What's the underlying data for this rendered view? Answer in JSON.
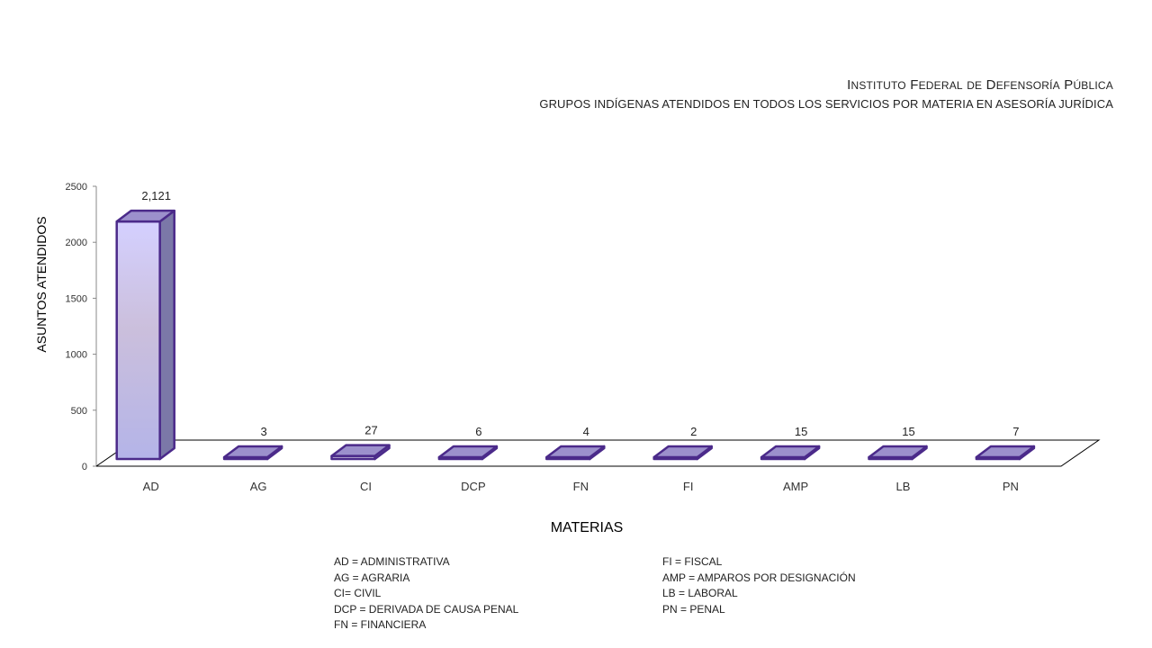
{
  "header": {
    "title": "Instituto Federal de Defensoría Pública",
    "subtitle": "GRUPOS INDÍGENAS ATENDIDOS EN TODOS LOS SERVICIOS POR MATERIA EN ASESORÍA JURÍDICA"
  },
  "legend": {
    "left": [
      "AD = ADMINISTRATIVA",
      "AG = AGRARIA",
      "CI= CIVIL",
      "DCP =  DERIVADA DE CAUSA  PENAL",
      "FN = FINANCIERA"
    ],
    "right": [
      "FI = FISCAL",
      "AMP = AMPAROS POR DESIGNACIÓN",
      "LB = LABORAL",
      "PN = PENAL"
    ]
  },
  "colors": {
    "bar_outline": "#4b2a8a",
    "bar_front_top": "#d4d0ff",
    "bar_front_bottom": "#b4b4e8",
    "bar_side": "#7b78a8",
    "bar_top": "#9c90cc",
    "axis": "#000000"
  },
  "chart_data": {
    "type": "bar",
    "style": "3d-column",
    "categories": [
      "AD",
      "AG",
      "CI",
      "DCP",
      "FN",
      "FI",
      "AMP",
      "LB",
      "PN"
    ],
    "values": [
      2121,
      3,
      27,
      6,
      4,
      2,
      15,
      15,
      7
    ],
    "data_labels": [
      "2,121",
      "3",
      "27",
      "6",
      "4",
      "2",
      "15",
      "15",
      "7"
    ],
    "title": "Instituto Federal de Defensoría Pública",
    "subtitle": "GRUPOS INDÍGENAS ATENDIDOS EN TODOS LOS SERVICIOS POR MATERIA EN ASESORÍA JURÍDICA",
    "xlabel": "MATERIAS",
    "ylabel": "ASUNTOS ATENDIDOS",
    "ylim": [
      0,
      2500
    ],
    "yticks": [
      0,
      500,
      1000,
      1500,
      2000,
      2500
    ],
    "grid": false,
    "legend": "none"
  }
}
